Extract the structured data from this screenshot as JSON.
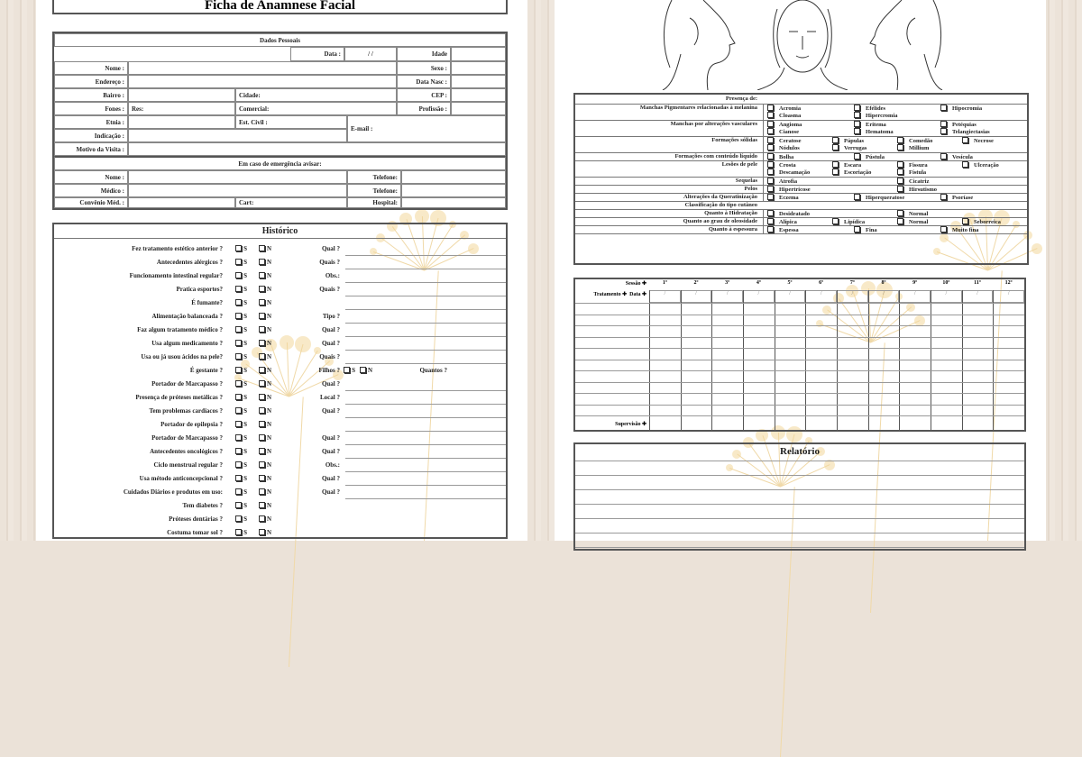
{
  "title": "Ficha de Anamnese Facial",
  "dados": {
    "header": "Dados Pessoais",
    "data_label": "Data :",
    "data_value": "/ /",
    "idade": "Idade",
    "nome": "Nome :",
    "sexo": "Sexo :",
    "endereco": "Endereço :",
    "data_nasc": "Data Nasc :",
    "bairro": "Bairro :",
    "cidade": "Cidade:",
    "cep": "CEP :",
    "fones": "Fones :",
    "res": "Res:",
    "comercial": "Comercial:",
    "profissao": "Profissão :",
    "etnia": "Etnia :",
    "est_civil": "Est. Civil :",
    "email": "E-mail :",
    "indicacao": "Indicação :",
    "motivo": "Motivo da Visita :"
  },
  "emergencia": {
    "header": "Em caso de emergência avisar:",
    "nome": "Nome :",
    "telefone1": "Telefone:",
    "medico": "Médico :",
    "telefone2": "Telefone:",
    "convenio": "Convênio Méd. :",
    "cart": "Cart:",
    "hospital": "Hospital:"
  },
  "historico": {
    "header": "Histórico",
    "sim": "S",
    "nao": "N",
    "rows": [
      {
        "q": "Fez tratamento estético anterior ?",
        "extra": "Qual ?"
      },
      {
        "q": "Antecedentes alérgicos ?",
        "extra": "Quais ?"
      },
      {
        "q": "Funcionamento intestinal regular?",
        "extra": "Obs.:"
      },
      {
        "q": "Pratica esportes?",
        "extra": "Quais ?"
      },
      {
        "q": "É fumante?",
        "extra": ""
      },
      {
        "q": "Alimentação balanceada ?",
        "extra": "Tipo ?"
      },
      {
        "q": "Faz algum tratamento médico ?",
        "extra": "Qual ?"
      },
      {
        "q": "Usa algum medicamento ?",
        "extra": "Qual ?"
      },
      {
        "q": "Usa ou já usou ácidos na pele?",
        "extra": "Quais ?"
      },
      {
        "q": "É gestante ?",
        "extra": "Filhos ?",
        "sub": "Quantos ?"
      },
      {
        "q": "Portador de Marcapasso ?",
        "extra": "Qual ?"
      },
      {
        "q": "Presença de próteses metálicas ?",
        "extra": "Local ?"
      },
      {
        "q": "Tem problemas cardíacos ?",
        "extra": "Qual ?"
      },
      {
        "q": "Portador de epilepsia ?",
        "extra": ""
      },
      {
        "q": "Portador de Marcapasso ?",
        "extra": "Qual ?"
      },
      {
        "q": "Antecedentes oncológicos ?",
        "extra": "Qual ?"
      },
      {
        "q": "Ciclo menstrual regular ?",
        "extra": "Obs.:"
      },
      {
        "q": "Usa método anticoncepcional ?",
        "extra": "Qual ?"
      },
      {
        "q": "Cuidados Diários e produtos em uso:",
        "extra": "Qual ?"
      },
      {
        "q": "Tem diabetes ?",
        "extra": ""
      },
      {
        "q": "Próteses dentárias ?",
        "extra": ""
      },
      {
        "q": "Costuma tomar sol ?",
        "extra": ""
      }
    ]
  },
  "presenca": {
    "header": "Presença de:",
    "rows": [
      {
        "label": "Manchas Pigmentares relacionadas à melanina",
        "cols": 3,
        "opts": [
          [
            "Acromia",
            "Efélides",
            "Hipocromia"
          ],
          [
            "Cloasma",
            "Hipercromia"
          ]
        ]
      },
      {
        "label": "Manchas por alterações vasculares",
        "cols": 3,
        "opts": [
          [
            "Angioma",
            "Eritema",
            "Petéquias"
          ],
          [
            "Cianose",
            "Hematoma",
            "Telangiectasias"
          ]
        ]
      },
      {
        "label": "Formações sólidas",
        "cols": 4,
        "opts": [
          [
            "Ceratose",
            "Pápulas",
            "Comedão",
            "Necrose"
          ],
          [
            "Nódulos",
            "Verrugas",
            "Millium"
          ]
        ]
      },
      {
        "label": "Formações com conteúdo líquido",
        "cols": 3,
        "opts": [
          [
            "Bolha",
            "Pústula",
            "Vesícula"
          ]
        ]
      },
      {
        "label": "Lesões de pele",
        "cols": 4,
        "opts": [
          [
            "Crosta",
            "Escara",
            "Fissura",
            "Ulceração"
          ],
          [
            "Descamação",
            "Escoriação",
            "Fístula"
          ]
        ]
      },
      {
        "label": "Sequelas",
        "cols": 2,
        "opts": [
          [
            "Atrofia",
            "Cicatriz"
          ]
        ]
      },
      {
        "label": "Pelos",
        "cols": 2,
        "opts": [
          [
            "Hipertricose",
            "Hirsutismo"
          ]
        ]
      },
      {
        "label": "Alterações da Queratinização",
        "cols": 3,
        "opts": [
          [
            "Eczema",
            "Hiperqueratose",
            "Psoríase"
          ]
        ]
      },
      {
        "label": "Classificação do tipo cutâneo",
        "cols": 1,
        "opts": []
      },
      {
        "label": "Quanto à Hidratação",
        "cols": 2,
        "opts": [
          [
            "Desidratado",
            "Normal"
          ]
        ]
      },
      {
        "label": "Quanto ao grau de oleosidade",
        "cols": 4,
        "opts": [
          [
            "Alípica",
            "Lipídica",
            "Normal",
            "Seborreica"
          ]
        ]
      },
      {
        "label": "Quanto à espessura",
        "cols": 3,
        "opts": [
          [
            "Espessa",
            "Fina",
            "Muito fina"
          ]
        ]
      }
    ]
  },
  "sessoes": {
    "sessao_label": "Sessão ✚",
    "tratamento_label": "Tratamento ✚",
    "data_label": "Data ✚",
    "supervisao_label": "Supervisão ✚",
    "columns": [
      "1º",
      "2º",
      "3º",
      "4º",
      "5º",
      "6º",
      "7º",
      "8º",
      "9º",
      "10º",
      "11º",
      "12º"
    ],
    "date_placeholder": "/"
  },
  "relatorio": {
    "header": "Relatório"
  },
  "colors": {
    "border": "#555555",
    "watermark": "#f3d79a",
    "background": "#ebe2d8"
  }
}
